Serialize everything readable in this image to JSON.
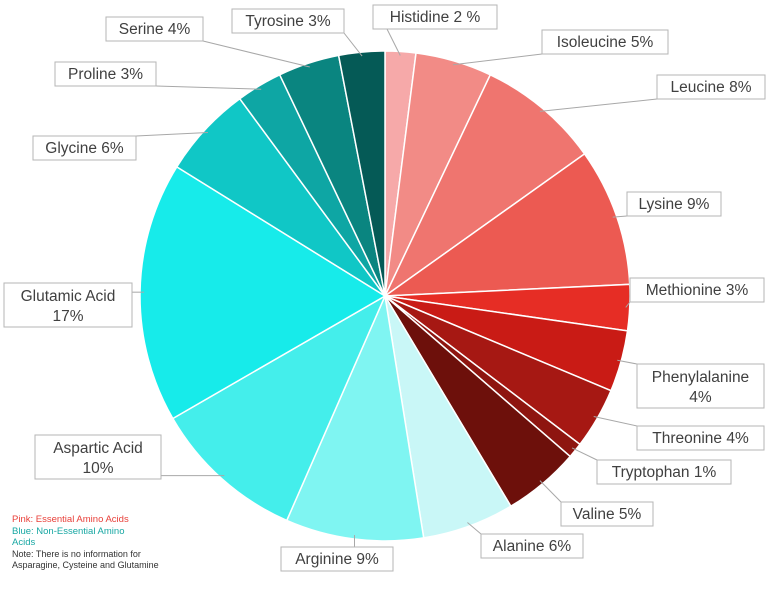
{
  "chart_data": {
    "type": "pie",
    "title": "",
    "slices": [
      {
        "label": "Histidine 2 %",
        "value": 2,
        "color": "#f6a9a9"
      },
      {
        "label": "Isoleucine 5%",
        "value": 5,
        "color": "#f28b86"
      },
      {
        "label": "Leucine 8%",
        "value": 8,
        "color": "#ef756f"
      },
      {
        "label": "Lysine 9%",
        "value": 9,
        "color": "#ec5a52"
      },
      {
        "label": "Methionine 3%",
        "value": 3,
        "color": "#e62d25"
      },
      {
        "label": "Phenylalanine 4%",
        "value": 4,
        "color": "#c91b15"
      },
      {
        "label": "Threonine 4%",
        "value": 4,
        "color": "#a61813"
      },
      {
        "label": "Tryptophan 1%",
        "value": 1,
        "color": "#8e1510"
      },
      {
        "label": "Valine 5%",
        "value": 5,
        "color": "#6d100b"
      },
      {
        "label": "Alanine 6%",
        "value": 6,
        "color": "#c9f7f7"
      },
      {
        "label": "Arginine 9%",
        "value": 9,
        "color": "#7ff5f2"
      },
      {
        "label": "Aspartic Acid 10%",
        "value": 10,
        "color": "#44eeeb"
      },
      {
        "label": "Glutamic Acid 17%",
        "value": 17,
        "color": "#17ebea"
      },
      {
        "label": "Glycine 6%",
        "value": 6,
        "color": "#10c7c6"
      },
      {
        "label": "Proline 3%",
        "value": 3,
        "color": "#0ea6a4"
      },
      {
        "label": "Serine 4%",
        "value": 4,
        "color": "#0a8580"
      },
      {
        "label": "Tyrosine 3%",
        "value": 3,
        "color": "#055a56"
      }
    ]
  },
  "notes": {
    "essential": "Pink: Essential Amino Acids",
    "essential_color": "#e8403a",
    "nonessential": "Blue: Non-Essential Amino Acids",
    "nonessential_color": "#17a7a3",
    "info": "Note: There is no information for Asparagine, Cysteine and Glutamine",
    "info_color": "#333333"
  }
}
